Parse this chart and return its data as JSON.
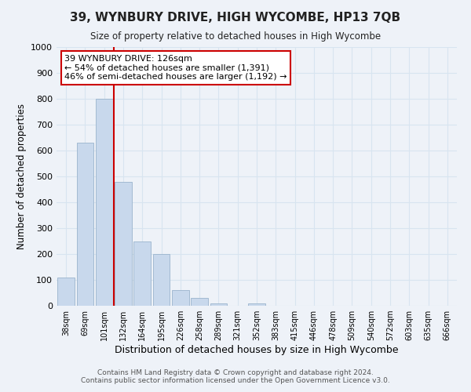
{
  "title": "39, WYNBURY DRIVE, HIGH WYCOMBE, HP13 7QB",
  "subtitle": "Size of property relative to detached houses in High Wycombe",
  "xlabel": "Distribution of detached houses by size in High Wycombe",
  "ylabel": "Number of detached properties",
  "footer_line1": "Contains HM Land Registry data © Crown copyright and database right 2024.",
  "footer_line2": "Contains public sector information licensed under the Open Government Licence v3.0.",
  "bar_labels": [
    "38sqm",
    "69sqm",
    "101sqm",
    "132sqm",
    "164sqm",
    "195sqm",
    "226sqm",
    "258sqm",
    "289sqm",
    "321sqm",
    "352sqm",
    "383sqm",
    "415sqm",
    "446sqm",
    "478sqm",
    "509sqm",
    "540sqm",
    "572sqm",
    "603sqm",
    "635sqm",
    "666sqm"
  ],
  "bar_values": [
    110,
    630,
    800,
    480,
    250,
    200,
    60,
    30,
    10,
    0,
    10,
    0,
    0,
    0,
    0,
    0,
    0,
    0,
    0,
    0,
    0
  ],
  "bar_color": "#c8d8ec",
  "bar_edge_color": "#9ab4cc",
  "property_line_bar_index": 2.5,
  "property_line_color": "#cc0000",
  "annotation_title": "39 WYNBURY DRIVE: 126sqm",
  "annotation_line1": "← 54% of detached houses are smaller (1,391)",
  "annotation_line2": "46% of semi-detached houses are larger (1,192) →",
  "annotation_box_color": "#ffffff",
  "annotation_box_edge": "#cc0000",
  "ylim": [
    0,
    1000
  ],
  "grid_color": "#d8e4f0",
  "background_color": "#eef2f8"
}
